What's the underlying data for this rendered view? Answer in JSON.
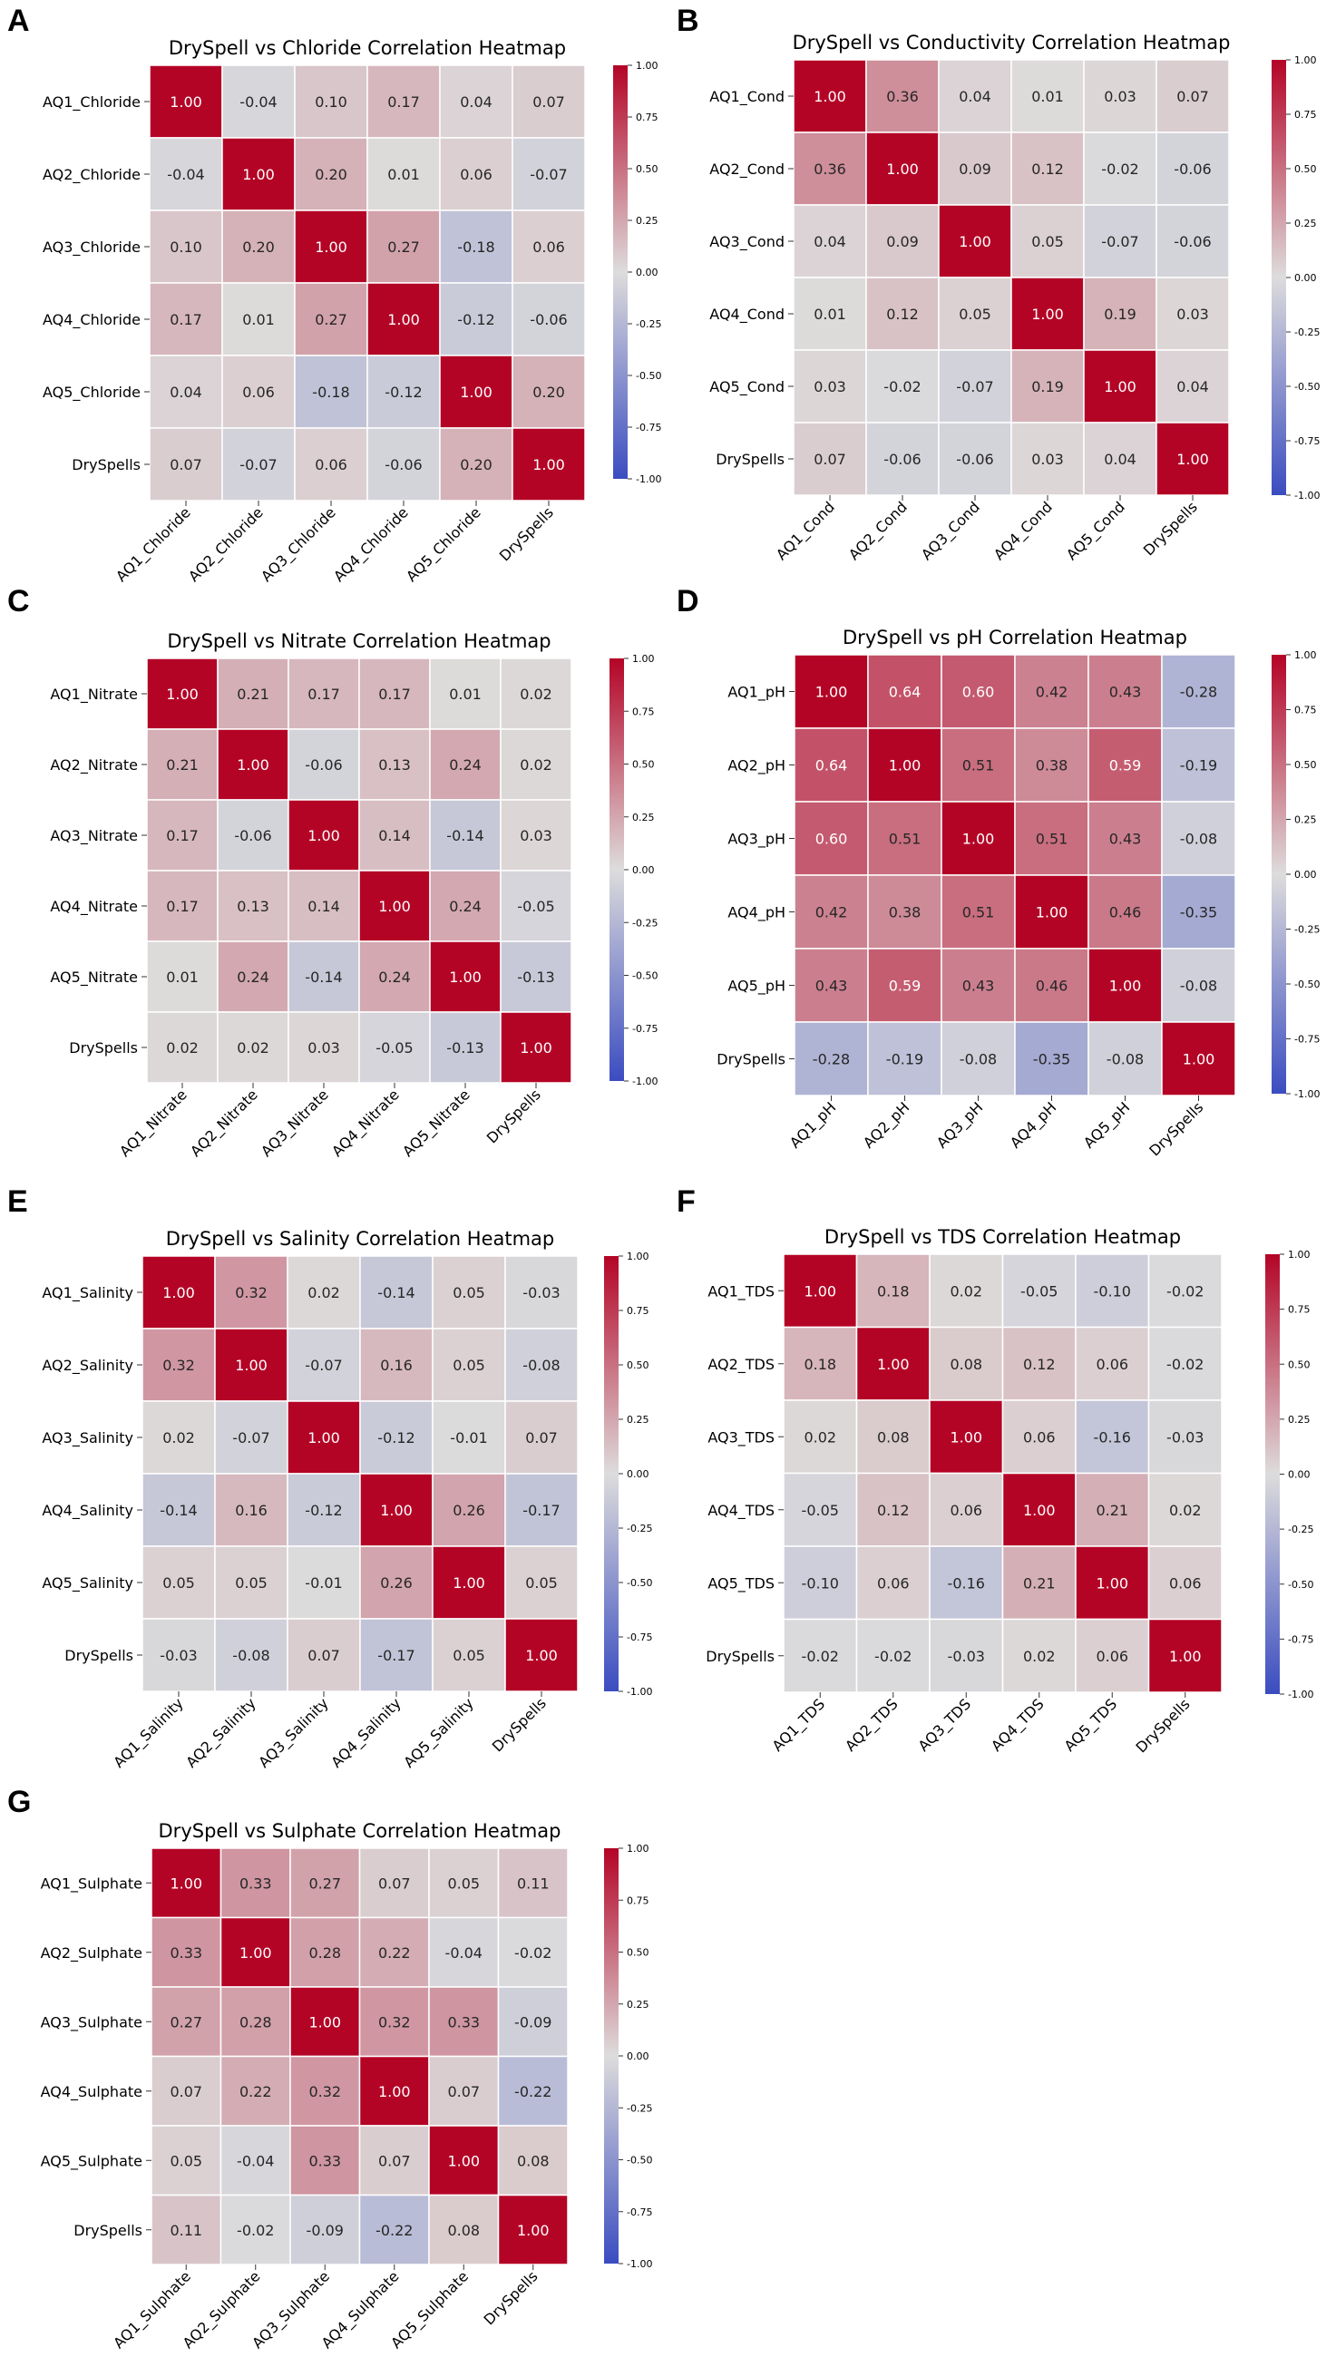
{
  "figure": {
    "panel_letters": [
      "A",
      "B",
      "C",
      "D",
      "E",
      "F",
      "G"
    ],
    "colormap": {
      "name": "coolwarm",
      "low": "#3b4cc0",
      "mid": "#dddcdc",
      "high": "#b40426"
    }
  },
  "chart_data": [
    {
      "type": "heatmap",
      "panel": "A",
      "title": "DrySpell vs Chloride Correlation Heatmap",
      "row_labels": [
        "AQ1_Chloride",
        "AQ2_Chloride",
        "AQ3_Chloride",
        "AQ4_Chloride",
        "AQ5_Chloride",
        "DrySpells"
      ],
      "col_labels": [
        "AQ1_Chloride",
        "AQ2_Chloride",
        "AQ3_Chloride",
        "AQ4_Chloride",
        "AQ5_Chloride",
        "DrySpells"
      ],
      "values": [
        [
          1.0,
          -0.04,
          0.1,
          0.17,
          0.04,
          0.07
        ],
        [
          -0.04,
          1.0,
          0.2,
          0.01,
          0.06,
          -0.07
        ],
        [
          0.1,
          0.2,
          1.0,
          0.27,
          -0.18,
          0.06
        ],
        [
          0.17,
          0.01,
          0.27,
          1.0,
          -0.12,
          -0.06
        ],
        [
          0.04,
          0.06,
          -0.18,
          -0.12,
          1.0,
          0.2
        ],
        [
          0.07,
          -0.07,
          0.06,
          -0.06,
          0.2,
          1.0
        ]
      ],
      "colorbar": {
        "vmin": -1.0,
        "vmax": 1.0,
        "ticks": [
          "1.00",
          "0.75",
          "0.50",
          "0.25",
          "0.00",
          "-0.25",
          "-0.50",
          "-0.75",
          "-1.00"
        ]
      }
    },
    {
      "type": "heatmap",
      "panel": "B",
      "title": "DrySpell vs Conductivity Correlation Heatmap",
      "row_labels": [
        "AQ1_Cond",
        "AQ2_Cond",
        "AQ3_Cond",
        "AQ4_Cond",
        "AQ5_Cond",
        "DrySpells"
      ],
      "col_labels": [
        "AQ1_Cond",
        "AQ2_Cond",
        "AQ3_Cond",
        "AQ4_Cond",
        "AQ5_Cond",
        "DrySpells"
      ],
      "values": [
        [
          1.0,
          0.36,
          0.04,
          0.01,
          0.03,
          0.07
        ],
        [
          0.36,
          1.0,
          0.09,
          0.12,
          -0.02,
          -0.06
        ],
        [
          0.04,
          0.09,
          1.0,
          0.05,
          -0.07,
          -0.06
        ],
        [
          0.01,
          0.12,
          0.05,
          1.0,
          0.19,
          0.03
        ],
        [
          0.03,
          -0.02,
          -0.07,
          0.19,
          1.0,
          0.04
        ],
        [
          0.07,
          -0.06,
          -0.06,
          0.03,
          0.04,
          1.0
        ]
      ],
      "colorbar": {
        "vmin": -1.0,
        "vmax": 1.0,
        "ticks": [
          "1.00",
          "0.75",
          "0.50",
          "0.25",
          "0.00",
          "-0.25",
          "-0.50",
          "-0.75",
          "-1.00"
        ]
      }
    },
    {
      "type": "heatmap",
      "panel": "C",
      "title": "DrySpell vs Nitrate Correlation Heatmap",
      "row_labels": [
        "AQ1_Nitrate",
        "AQ2_Nitrate",
        "AQ3_Nitrate",
        "AQ4_Nitrate",
        "AQ5_Nitrate",
        "DrySpells"
      ],
      "col_labels": [
        "AQ1_Nitrate",
        "AQ2_Nitrate",
        "AQ3_Nitrate",
        "AQ4_Nitrate",
        "AQ5_Nitrate",
        "DrySpells"
      ],
      "values": [
        [
          1.0,
          0.21,
          0.17,
          0.17,
          0.01,
          0.02
        ],
        [
          0.21,
          1.0,
          -0.06,
          0.13,
          0.24,
          0.02
        ],
        [
          0.17,
          -0.06,
          1.0,
          0.14,
          -0.14,
          0.03
        ],
        [
          0.17,
          0.13,
          0.14,
          1.0,
          0.24,
          -0.05
        ],
        [
          0.01,
          0.24,
          -0.14,
          0.24,
          1.0,
          -0.13
        ],
        [
          0.02,
          0.02,
          0.03,
          -0.05,
          -0.13,
          1.0
        ]
      ],
      "colorbar": {
        "vmin": -1.0,
        "vmax": 1.0,
        "ticks": [
          "1.00",
          "0.75",
          "0.50",
          "0.25",
          "0.00",
          "-0.25",
          "-0.50",
          "-0.75",
          "-1.00"
        ]
      }
    },
    {
      "type": "heatmap",
      "panel": "D",
      "title": "DrySpell vs pH Correlation Heatmap",
      "row_labels": [
        "AQ1_pH",
        "AQ2_pH",
        "AQ3_pH",
        "AQ4_pH",
        "AQ5_pH",
        "DrySpells"
      ],
      "col_labels": [
        "AQ1_pH",
        "AQ2_pH",
        "AQ3_pH",
        "AQ4_pH",
        "AQ5_pH",
        "DrySpells"
      ],
      "values": [
        [
          1.0,
          0.64,
          0.6,
          0.42,
          0.43,
          -0.28
        ],
        [
          0.64,
          1.0,
          0.51,
          0.38,
          0.59,
          -0.19
        ],
        [
          0.6,
          0.51,
          1.0,
          0.51,
          0.43,
          -0.08
        ],
        [
          0.42,
          0.38,
          0.51,
          1.0,
          0.46,
          -0.35
        ],
        [
          0.43,
          0.59,
          0.43,
          0.46,
          1.0,
          -0.08
        ],
        [
          -0.28,
          -0.19,
          -0.08,
          -0.35,
          -0.08,
          1.0
        ]
      ],
      "colorbar": {
        "vmin": -1.0,
        "vmax": 1.0,
        "ticks": [
          "1.00",
          "0.75",
          "0.50",
          "0.25",
          "0.00",
          "-0.25",
          "-0.50",
          "-0.75",
          "-1.00"
        ]
      }
    },
    {
      "type": "heatmap",
      "panel": "E",
      "title": "DrySpell vs Salinity Correlation Heatmap",
      "row_labels": [
        "AQ1_Salinity",
        "AQ2_Salinity",
        "AQ3_Salinity",
        "AQ4_Salinity",
        "AQ5_Salinity",
        "DrySpells"
      ],
      "col_labels": [
        "AQ1_Salinity",
        "AQ2_Salinity",
        "AQ3_Salinity",
        "AQ4_Salinity",
        "AQ5_Salinity",
        "DrySpells"
      ],
      "values": [
        [
          1.0,
          0.32,
          0.02,
          -0.14,
          0.05,
          -0.03
        ],
        [
          0.32,
          1.0,
          -0.07,
          0.16,
          0.05,
          -0.08
        ],
        [
          0.02,
          -0.07,
          1.0,
          -0.12,
          -0.01,
          0.07
        ],
        [
          -0.14,
          0.16,
          -0.12,
          1.0,
          0.26,
          -0.17
        ],
        [
          0.05,
          0.05,
          -0.01,
          0.26,
          1.0,
          0.05
        ],
        [
          -0.03,
          -0.08,
          0.07,
          -0.17,
          0.05,
          1.0
        ]
      ],
      "colorbar": {
        "vmin": -1.0,
        "vmax": 1.0,
        "ticks": [
          "1.00",
          "0.75",
          "0.50",
          "0.25",
          "0.00",
          "-0.25",
          "-0.50",
          "-0.75",
          "-1.00"
        ]
      }
    },
    {
      "type": "heatmap",
      "panel": "F",
      "title": "DrySpell vs TDS Correlation Heatmap",
      "row_labels": [
        "AQ1_TDS",
        "AQ2_TDS",
        "AQ3_TDS",
        "AQ4_TDS",
        "AQ5_TDS",
        "DrySpells"
      ],
      "col_labels": [
        "AQ1_TDS",
        "AQ2_TDS",
        "AQ3_TDS",
        "AQ4_TDS",
        "AQ5_TDS",
        "DrySpells"
      ],
      "values": [
        [
          1.0,
          0.18,
          0.02,
          -0.05,
          -0.1,
          -0.02
        ],
        [
          0.18,
          1.0,
          0.08,
          0.12,
          0.06,
          -0.02
        ],
        [
          0.02,
          0.08,
          1.0,
          0.06,
          -0.16,
          -0.03
        ],
        [
          -0.05,
          0.12,
          0.06,
          1.0,
          0.21,
          0.02
        ],
        [
          -0.1,
          0.06,
          -0.16,
          0.21,
          1.0,
          0.06
        ],
        [
          -0.02,
          -0.02,
          -0.03,
          0.02,
          0.06,
          1.0
        ]
      ],
      "colorbar": {
        "vmin": -1.0,
        "vmax": 1.0,
        "ticks": [
          "1.00",
          "0.75",
          "0.50",
          "0.25",
          "0.00",
          "-0.25",
          "-0.50",
          "-0.75",
          "-1.00"
        ]
      }
    },
    {
      "type": "heatmap",
      "panel": "G",
      "title": "DrySpell vs Sulphate Correlation Heatmap",
      "row_labels": [
        "AQ1_Sulphate",
        "AQ2_Sulphate",
        "AQ3_Sulphate",
        "AQ4_Sulphate",
        "AQ5_Sulphate",
        "DrySpells"
      ],
      "col_labels": [
        "AQ1_Sulphate",
        "AQ2_Sulphate",
        "AQ3_Sulphate",
        "AQ4_Sulphate",
        "AQ5_Sulphate",
        "DrySpells"
      ],
      "values": [
        [
          1.0,
          0.33,
          0.27,
          0.07,
          0.05,
          0.11
        ],
        [
          0.33,
          1.0,
          0.28,
          0.22,
          -0.04,
          -0.02
        ],
        [
          0.27,
          0.28,
          1.0,
          0.32,
          0.33,
          -0.09
        ],
        [
          0.07,
          0.22,
          0.32,
          1.0,
          0.07,
          -0.22
        ],
        [
          0.05,
          -0.04,
          0.33,
          0.07,
          1.0,
          0.08
        ],
        [
          0.11,
          -0.02,
          -0.09,
          -0.22,
          0.08,
          1.0
        ]
      ],
      "colorbar": {
        "vmin": -1.0,
        "vmax": 1.0,
        "ticks": [
          "1.00",
          "0.75",
          "0.50",
          "0.25",
          "0.00",
          "-0.25",
          "-0.50",
          "-0.75",
          "-1.00"
        ]
      }
    }
  ]
}
